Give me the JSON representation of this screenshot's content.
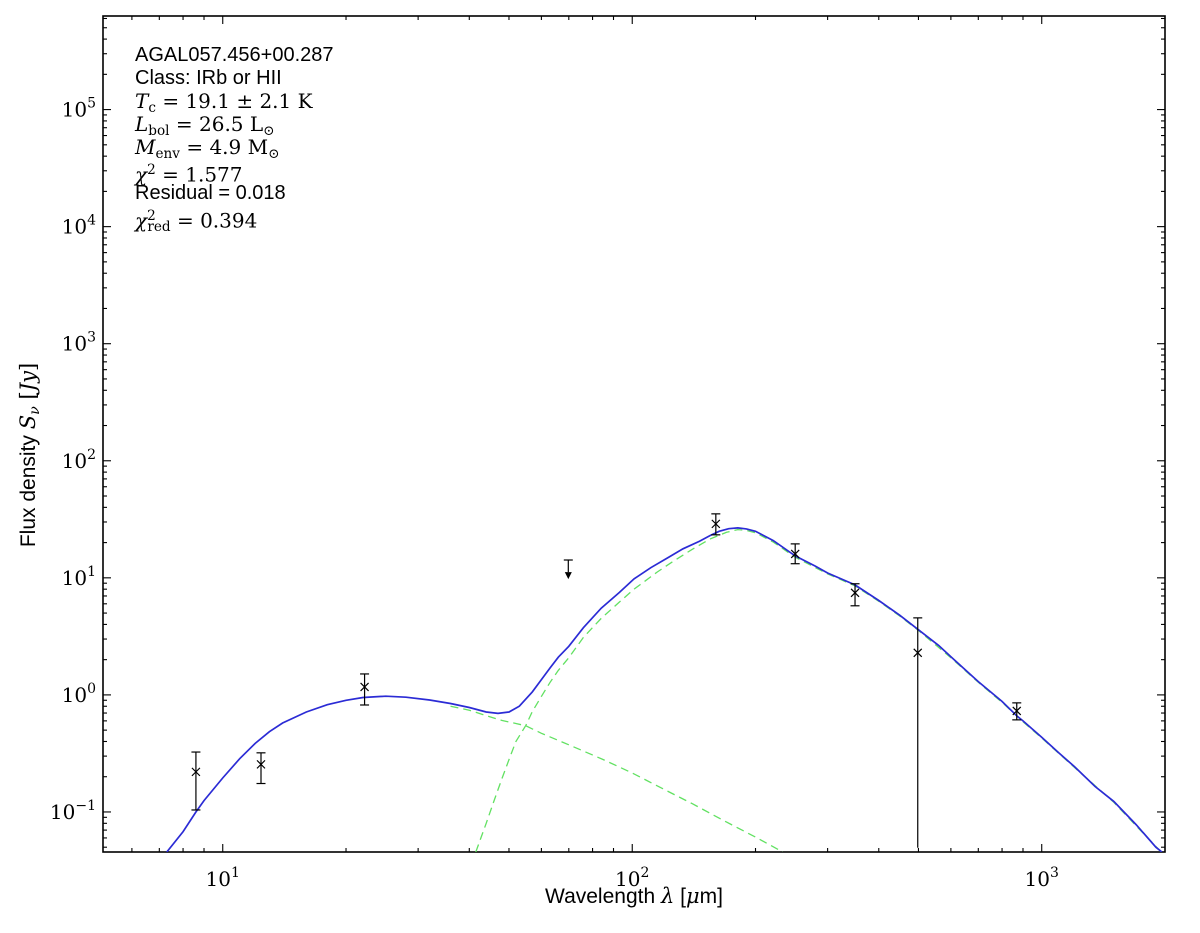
{
  "colors": {
    "model_curve": "#2b2bd5",
    "component_curves": "#62e162",
    "data_points": "#000000",
    "frame": "#000000",
    "background": "#ffffff"
  },
  "chart_data": {
    "type": "line",
    "title": "",
    "xlabel": "Wavelength λ [μm]",
    "ylabel": "Flux density Sν [Jy]",
    "xlabel_segments": [
      {
        "t": "Wavelength ",
        "f": "sans"
      },
      {
        "t": "λ",
        "f": "mathit"
      },
      {
        "t": " [",
        "f": "sans"
      },
      {
        "t": "μ",
        "f": "mathit"
      },
      {
        "t": "m]",
        "f": "sans"
      }
    ],
    "ylabel_segments": [
      {
        "t": "Flux density ",
        "f": "sans"
      },
      {
        "t": "S",
        "f": "mathit"
      },
      {
        "t": "ν",
        "f": "subit"
      },
      {
        "t": " [",
        "f": "math"
      },
      {
        "t": "Jy",
        "f": "mathit"
      },
      {
        "t": "]",
        "f": "math"
      }
    ],
    "annotation_lines": [
      {
        "segments": [
          {
            "t": "AGAL057.456+00.287",
            "f": "sans"
          }
        ]
      },
      {
        "segments": [
          {
            "t": "Class: IRb or HII",
            "f": "sans"
          }
        ]
      },
      {
        "segments": [
          {
            "t": "T",
            "f": "mathit"
          },
          {
            "t": "c",
            "f": "sub"
          },
          {
            "t": " = 19.1 ± 2.1 K",
            "f": "math"
          }
        ]
      },
      {
        "segments": [
          {
            "t": "L",
            "f": "mathit"
          },
          {
            "t": "bol",
            "f": "sub"
          },
          {
            "t": " = 26.5 L",
            "f": "math"
          },
          {
            "t": "⊙",
            "f": "sub"
          }
        ]
      },
      {
        "segments": [
          {
            "t": "M",
            "f": "mathit"
          },
          {
            "t": "env",
            "f": "sub"
          },
          {
            "t": " = 4.9 M",
            "f": "math"
          },
          {
            "t": "⊙",
            "f": "sub"
          }
        ]
      },
      {
        "segments": [
          {
            "t": "χ",
            "f": "mathit"
          },
          {
            "t": "2",
            "f": "sup"
          },
          {
            "t": " = 1.577",
            "f": "math"
          }
        ]
      },
      {
        "segments": [
          {
            "t": "Residual = 0.018",
            "f": "sans"
          }
        ]
      },
      {
        "segments": [
          {
            "t": "χ",
            "f": "mathit"
          },
          {
            "t": "2",
            "f": "sup"
          },
          {
            "t": "red",
            "f": "subtight"
          },
          {
            "t": " = 0.394",
            "f": "math"
          }
        ]
      }
    ],
    "x_axis": {
      "scale": "log",
      "min": 5.1,
      "max": 2000,
      "major_ticks": [
        10,
        100,
        1000
      ],
      "major_tick_exponents": [
        1,
        2,
        3
      ],
      "grid": false
    },
    "y_axis": {
      "scale": "log",
      "min": 0.0455,
      "max": 630000,
      "major_ticks": [
        0.1,
        1,
        10,
        100,
        1000,
        10000,
        100000
      ],
      "major_tick_exponents": [
        -1,
        0,
        1,
        2,
        3,
        4,
        5
      ],
      "grid": false
    },
    "legend": "none",
    "series": [
      {
        "name": "total-model-fit",
        "style": "solid",
        "color_key": "model_curve",
        "points": [
          [
            7.3,
            0.0455
          ],
          [
            8,
            0.068
          ],
          [
            8.6,
            0.1
          ],
          [
            9,
            0.125
          ],
          [
            10,
            0.195
          ],
          [
            11,
            0.285
          ],
          [
            12,
            0.385
          ],
          [
            13,
            0.485
          ],
          [
            14,
            0.575
          ],
          [
            16,
            0.715
          ],
          [
            18,
            0.825
          ],
          [
            20,
            0.9
          ],
          [
            22,
            0.95
          ],
          [
            25,
            0.975
          ],
          [
            28,
            0.955
          ],
          [
            32,
            0.905
          ],
          [
            36,
            0.845
          ],
          [
            40,
            0.78
          ],
          [
            44,
            0.715
          ],
          [
            47,
            0.695
          ],
          [
            50,
            0.715
          ],
          [
            53,
            0.8
          ],
          [
            57,
            1.06
          ],
          [
            60,
            1.35
          ],
          [
            63,
            1.7
          ],
          [
            66,
            2.1
          ],
          [
            70,
            2.6
          ],
          [
            76,
            3.75
          ],
          [
            84,
            5.5
          ],
          [
            93,
            7.5
          ],
          [
            101,
            9.8
          ],
          [
            111,
            12.2
          ],
          [
            122,
            14.8
          ],
          [
            133,
            17.7
          ],
          [
            146,
            20.5
          ],
          [
            155,
            23.0
          ],
          [
            163,
            25.0
          ],
          [
            172,
            26.3
          ],
          [
            181,
            26.7
          ],
          [
            190,
            26.2
          ],
          [
            200,
            25.0
          ],
          [
            221,
            20.8
          ],
          [
            250,
            15.4
          ],
          [
            280,
            12.6
          ],
          [
            300,
            11.0
          ],
          [
            350,
            8.7
          ],
          [
            400,
            6.4
          ],
          [
            450,
            4.8
          ],
          [
            500,
            3.6
          ],
          [
            560,
            2.65
          ],
          [
            600,
            2.12
          ],
          [
            700,
            1.3
          ],
          [
            800,
            0.88
          ],
          [
            870,
            0.66
          ],
          [
            900,
            0.6
          ],
          [
            1000,
            0.435
          ],
          [
            1100,
            0.32
          ],
          [
            1200,
            0.245
          ],
          [
            1350,
            0.165
          ],
          [
            1500,
            0.123
          ],
          [
            1700,
            0.078
          ],
          [
            1900,
            0.05
          ],
          [
            1965,
            0.0455
          ]
        ]
      },
      {
        "name": "warm-component",
        "style": "dashed",
        "color_key": "component_curves",
        "points": [
          [
            36,
            0.8
          ],
          [
            40,
            0.74
          ],
          [
            44,
            0.665
          ],
          [
            48,
            0.605
          ],
          [
            52,
            0.57
          ],
          [
            55,
            0.545
          ],
          [
            60,
            0.47
          ],
          [
            70,
            0.375
          ],
          [
            85,
            0.28
          ],
          [
            100,
            0.215
          ],
          [
            120,
            0.155
          ],
          [
            140,
            0.118
          ],
          [
            170,
            0.082
          ],
          [
            200,
            0.061
          ],
          [
            233,
            0.0455
          ]
        ]
      },
      {
        "name": "cold-component",
        "style": "dashed",
        "color_key": "component_curves",
        "points": [
          [
            41.5,
            0.0455
          ],
          [
            44,
            0.08
          ],
          [
            46,
            0.125
          ],
          [
            48,
            0.19
          ],
          [
            50,
            0.28
          ],
          [
            52,
            0.4
          ],
          [
            55,
            0.55
          ],
          [
            57,
            0.72
          ],
          [
            60,
            0.97
          ],
          [
            63,
            1.28
          ],
          [
            66,
            1.62
          ],
          [
            70,
            2.08
          ],
          [
            76,
            3.1
          ],
          [
            84,
            4.5
          ],
          [
            93,
            6.2
          ],
          [
            101,
            8.0
          ],
          [
            106,
            9.05
          ],
          [
            115,
            11.2
          ],
          [
            125,
            13.6
          ],
          [
            140,
            17.5
          ],
          [
            155,
            21.5
          ],
          [
            170,
            24.5
          ],
          [
            181,
            25.8
          ],
          [
            190,
            25.4
          ],
          [
            200,
            24.3
          ],
          [
            221,
            20.2
          ],
          [
            250,
            15.0
          ],
          [
            300,
            10.8
          ],
          [
            350,
            8.55
          ],
          [
            400,
            6.3
          ],
          [
            450,
            4.72
          ],
          [
            500,
            3.55
          ],
          [
            600,
            2.08
          ],
          [
            700,
            1.28
          ],
          [
            800,
            0.865
          ],
          [
            900,
            0.59
          ],
          [
            1000,
            0.428
          ],
          [
            1200,
            0.241
          ],
          [
            1500,
            0.121
          ],
          [
            1960,
            0.0452
          ]
        ]
      }
    ],
    "data_points": [
      {
        "x": 8.6,
        "y": 0.22,
        "y_hi": 0.325,
        "y_lo": 0.104,
        "cap_lo": true
      },
      {
        "x": 12.4,
        "y": 0.255,
        "y_hi": 0.32,
        "y_lo": 0.175,
        "cap_lo": true
      },
      {
        "x": 22.2,
        "y": 1.17,
        "y_hi": 1.51,
        "y_lo": 0.82,
        "cap_lo": true
      },
      {
        "x": 160,
        "y": 28.9,
        "y_hi": 35.2,
        "y_lo": 23.3,
        "cap_lo": true
      },
      {
        "x": 250,
        "y": 16.0,
        "y_hi": 19.5,
        "y_lo": 13.2,
        "cap_lo": true
      },
      {
        "x": 350,
        "y": 7.45,
        "y_hi": 8.9,
        "y_lo": 5.77,
        "cap_lo": true
      },
      {
        "x": 498,
        "y": 2.29,
        "y_hi": 4.55,
        "y_lo": 0.0495,
        "cap_lo": false
      },
      {
        "x": 869,
        "y": 0.73,
        "y_hi": 0.855,
        "y_lo": 0.612,
        "cap_lo": true
      }
    ],
    "upper_limits": [
      {
        "x": 69.8,
        "y_cap": 14.2,
        "y_tip": 11.2
      }
    ]
  }
}
